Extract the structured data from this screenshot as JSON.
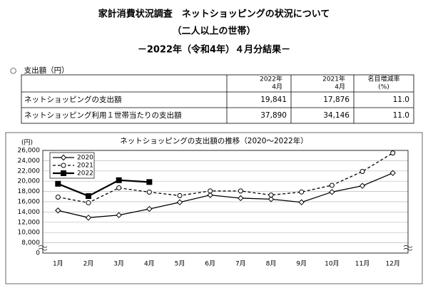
{
  "header": {
    "title": "家計消費状況調査　ネットショッピングの状況について",
    "subtitle": "（二人以上の世帯）",
    "period": "－2022年（令和4年）４月分結果－",
    "section": "○　支出額（円）"
  },
  "table": {
    "header": [
      [
        "2022年",
        "4月"
      ],
      [
        "2021年",
        "4月"
      ],
      [
        "名目増減率",
        "(%)"
      ]
    ],
    "rows": [
      [
        "ネットショッピングの支出額",
        "19,841",
        "17,876",
        "11.0"
      ],
      [
        "ネットショッピング利用１世帯当たりの支出額",
        "37,890",
        "34,146",
        "11.0"
      ]
    ]
  },
  "chart_data": {
    "type": "line",
    "title": "ネットショッピングの支出額の推移（2020～2022年）",
    "y_label": "(円)",
    "categories": [
      "1月",
      "2月",
      "3月",
      "4月",
      "5月",
      "6月",
      "7月",
      "8月",
      "9月",
      "10月",
      "11月",
      "12月"
    ],
    "series": [
      {
        "name": "2020",
        "color": "#000000",
        "dash": false,
        "marker": "diamond",
        "values": [
          14300,
          12900,
          13400,
          14600,
          15900,
          17300,
          16700,
          16500,
          15900,
          17900,
          19100,
          21600
        ]
      },
      {
        "name": "2021",
        "color": "#000000",
        "dash": true,
        "marker": "circle",
        "values": [
          16900,
          15800,
          18700,
          17876,
          17200,
          18100,
          18100,
          17300,
          17900,
          19200,
          21900,
          25500
        ]
      },
      {
        "name": "2022",
        "color": "#000000",
        "dash": false,
        "marker": "square",
        "values": [
          19500,
          17100,
          20200,
          19841,
          null,
          null,
          null,
          null,
          null,
          null,
          null,
          null
        ]
      }
    ],
    "ylim": [
      0,
      26000
    ],
    "axis_break": [
      0,
      8000
    ],
    "yticks": [
      0,
      {
        "value": 8000,
        "label": "8,000"
      },
      {
        "value": 10000,
        "label": "10,000"
      },
      {
        "value": 12000,
        "label": "12,000"
      },
      {
        "value": 14000,
        "label": "14,000"
      },
      {
        "value": 16000,
        "label": "16,000"
      },
      {
        "value": 18000,
        "label": "18,000"
      },
      {
        "value": 20000,
        "label": "20,000"
      },
      {
        "value": 22000,
        "label": "22,000"
      },
      {
        "value": 24000,
        "label": "24,000"
      },
      {
        "value": 26000,
        "label": "26,000"
      }
    ],
    "grid": true,
    "legend": "upper left"
  }
}
